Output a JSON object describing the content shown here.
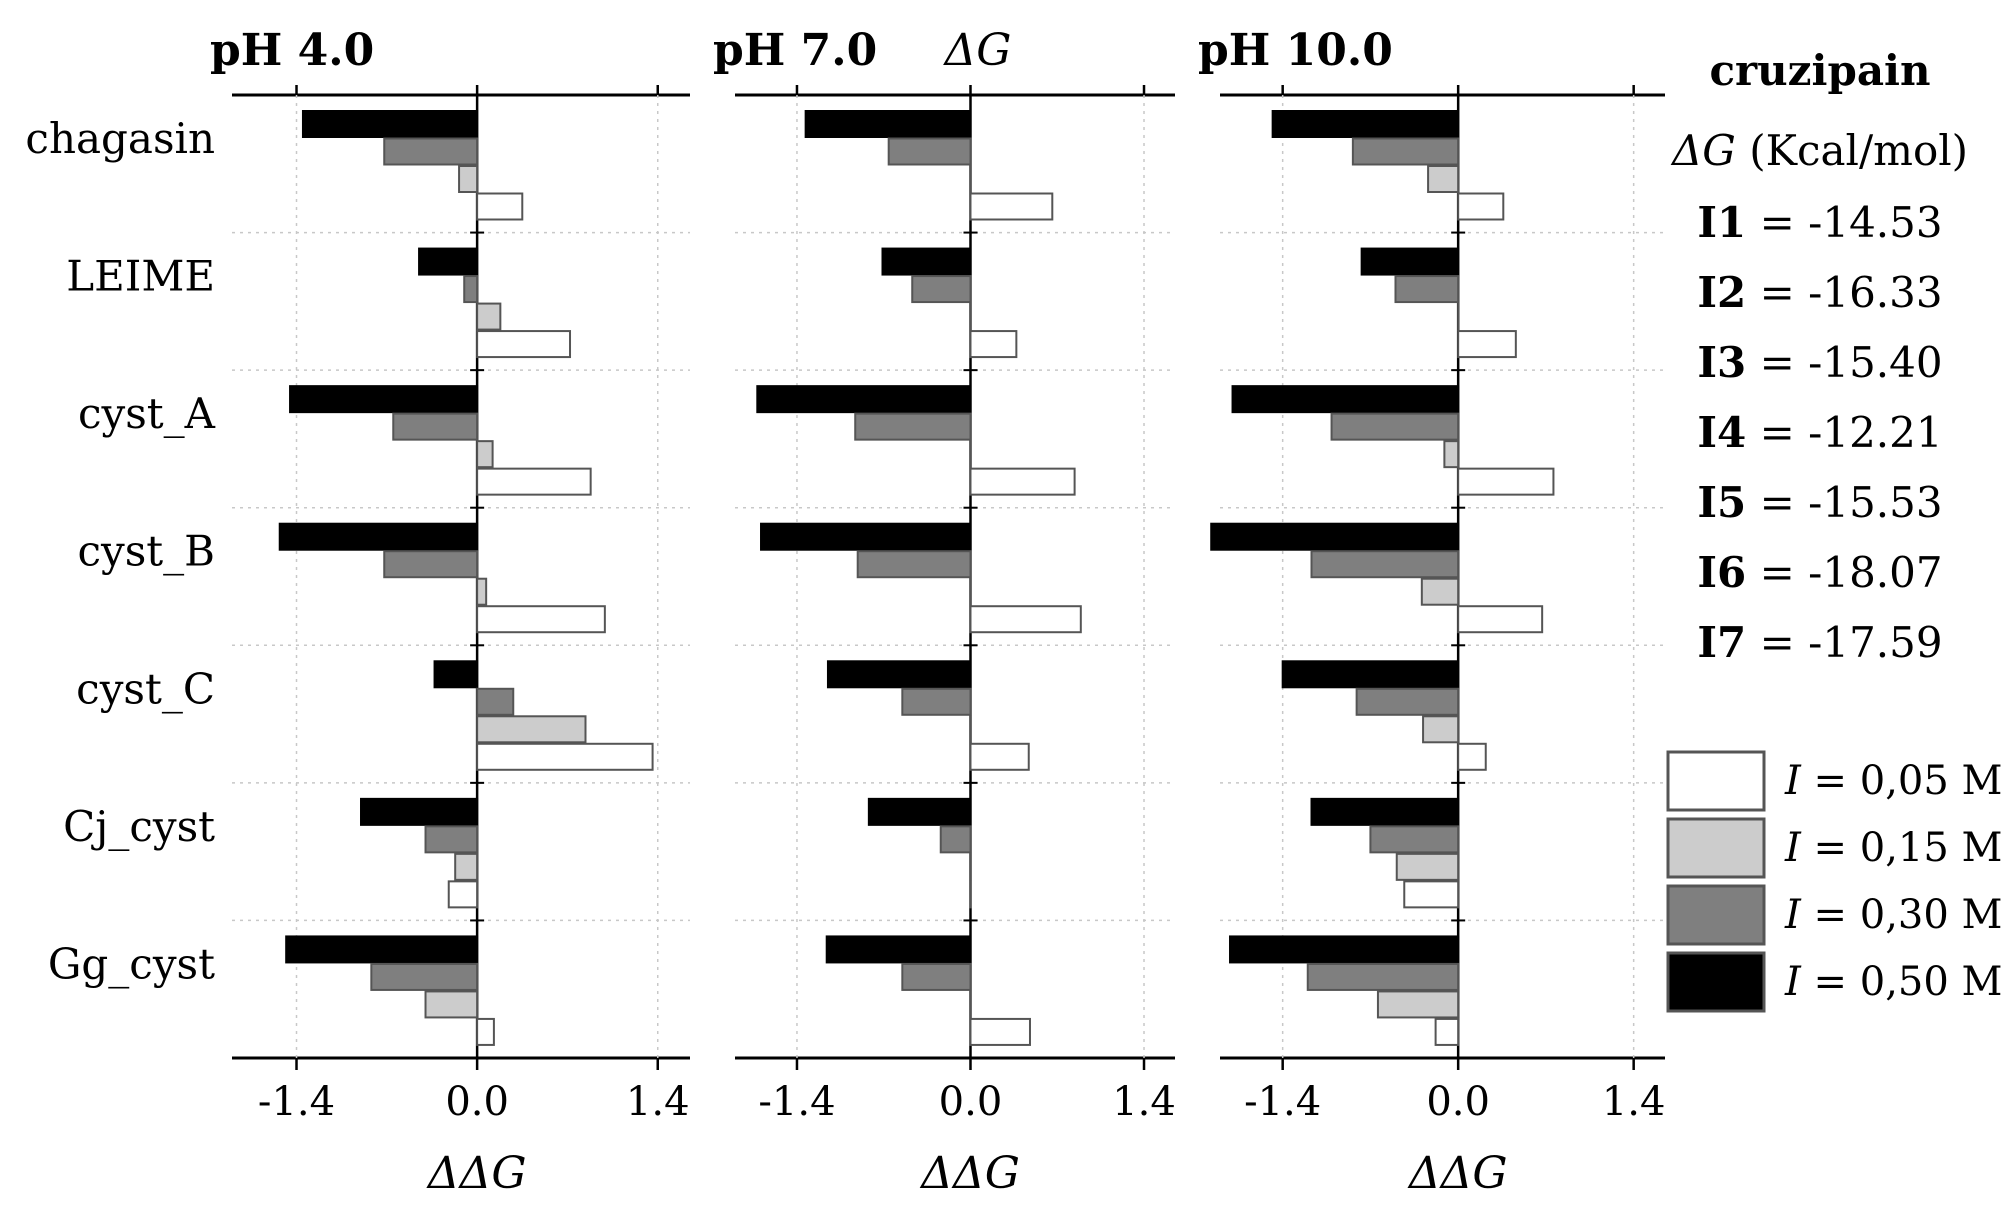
{
  "chart_data": {
    "type": "bar",
    "orientation": "horizontal",
    "title": "ΔG",
    "categories": [
      "chagasin",
      "LEIME",
      "cyst_A",
      "cyst_B",
      "cyst_C",
      "Cj_cyst",
      "Gg_cyst"
    ],
    "series_names": [
      "I = 0,50 M",
      "I = 0,30 M",
      "I = 0,15 M",
      "I = 0,05 M"
    ],
    "xlim": [
      -1.9,
      1.65
    ],
    "xticks": [
      -1.4,
      0.0,
      1.4
    ],
    "xtick_labels": [
      "-1.4",
      "0.0",
      "1.4"
    ],
    "xlabel": "ΔΔG",
    "panels": [
      {
        "title": "pH 4.0",
        "values": {
          "I = 0,50 M": [
            -1.35,
            -0.45,
            -1.45,
            -1.53,
            -0.33,
            -0.9,
            -1.48
          ],
          "I = 0,30 M": [
            -0.72,
            -0.1,
            -0.65,
            -0.72,
            0.28,
            -0.4,
            -0.82
          ],
          "I = 0,15 M": [
            -0.14,
            0.18,
            0.12,
            0.07,
            0.84,
            -0.17,
            -0.4
          ],
          "I = 0,05 M": [
            0.35,
            0.72,
            0.88,
            0.99,
            1.36,
            -0.22,
            0.13
          ]
        }
      },
      {
        "title": "pH 7.0",
        "values": {
          "I = 0,50 M": [
            -1.33,
            -0.71,
            -1.72,
            -1.69,
            -1.15,
            -0.82,
            -1.16
          ],
          "I = 0,30 M": [
            -0.66,
            -0.47,
            -0.93,
            -0.91,
            -0.55,
            -0.24,
            -0.55
          ],
          "I = 0,15 M": [
            0.0,
            0.0,
            0.0,
            0.0,
            0.0,
            0.0,
            0.0
          ],
          "I = 0,05 M": [
            0.66,
            0.37,
            0.84,
            0.89,
            0.47,
            0.0,
            0.48
          ]
        }
      },
      {
        "title": "pH 10.0",
        "values": {
          "I = 0,50 M": [
            -1.48,
            -0.77,
            -1.8,
            -1.97,
            -1.4,
            -1.17,
            -1.82
          ],
          "I = 0,30 M": [
            -0.84,
            -0.5,
            -1.01,
            -1.17,
            -0.81,
            -0.7,
            -1.2
          ],
          "I = 0,15 M": [
            -0.24,
            0.0,
            -0.11,
            -0.29,
            -0.28,
            -0.49,
            -0.64
          ],
          "I = 0,05 M": [
            0.36,
            0.46,
            0.76,
            0.67,
            0.22,
            -0.43,
            -0.18
          ]
        }
      }
    ],
    "series_colors": {
      "I = 0,50 M": "#000000",
      "I = 0,30 M": "#7f7f7f",
      "I = 0,15 M": "#cccccc",
      "I = 0,05 M": "#ffffff"
    }
  },
  "side_panel": {
    "protein": "cruzipain",
    "dg_symbol": "ΔG",
    "dg_unit": "(Kcal/mol)",
    "entries": [
      {
        "label": "I1",
        "value": "= -14.53"
      },
      {
        "label": "I2",
        "value": "= -16.33"
      },
      {
        "label": "I3",
        "value": "= -15.40"
      },
      {
        "label": "I4",
        "value": "= -12.21"
      },
      {
        "label": "I5",
        "value": "= -15.53"
      },
      {
        "label": "I6",
        "value": "= -18.07"
      },
      {
        "label": "I7",
        "value": "= -17.59"
      }
    ]
  },
  "legend": {
    "items": [
      {
        "symbol": "I",
        "text": "= 0,05 M",
        "color": "#ffffff"
      },
      {
        "symbol": "I",
        "text": "= 0,15 M",
        "color": "#cccccc"
      },
      {
        "symbol": "I",
        "text": "= 0,30 M",
        "color": "#7f7f7f"
      },
      {
        "symbol": "I",
        "text": "= 0,50 M",
        "color": "#000000"
      }
    ]
  }
}
